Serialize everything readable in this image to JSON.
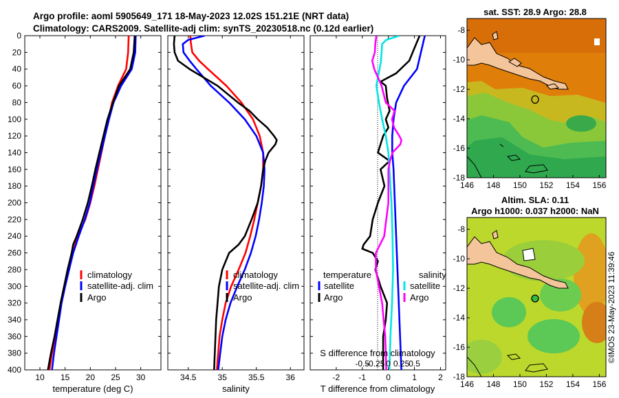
{
  "title": {
    "line1": "Argo profile: aoml 5905649_171 18-May-2023 12.02S 151.21E (NRT data)",
    "line2": "Climatology: CARS2009. Satellite-adj clim: synTS_20230518.nc (0.12d earlier)"
  },
  "depth_axis": {
    "ticks": [
      "0",
      "20",
      "40",
      "60",
      "80",
      "100",
      "120",
      "140",
      "160",
      "180",
      "200",
      "220",
      "240",
      "260",
      "280",
      "300",
      "320",
      "340",
      "360",
      "380",
      "400"
    ]
  },
  "map_titles": {
    "sst": "sat. SST: 28.9 Argo: 28.8",
    "sla_line1": "Altim. SLA: 0.11",
    "sla_line2": "Argo h1000: 0.037 h2000: NaN"
  },
  "map_axes": {
    "x_ticks": [
      "146",
      "148",
      "150",
      "152",
      "154",
      "156"
    ],
    "y_ticks": [
      "-8",
      "-10",
      "-12",
      "-14",
      "-16",
      "-18"
    ]
  },
  "stamp": "©IMOS 23-May-2023 11:39:46",
  "colors": {
    "climatology": "#ff0000",
    "satellite": "#0000ff",
    "argo": "#000000",
    "sat_salinity": "#00e5e5",
    "argo_salinity": "#ff00ff"
  },
  "chart_data": [
    {
      "type": "line",
      "name": "temperature-panel",
      "xlabel": "temperature (deg C)",
      "ylabel": "depth",
      "xlim": [
        7,
        34
      ],
      "ylim": [
        400,
        0
      ],
      "x_ticks": [
        "10",
        "15",
        "20",
        "25",
        "30"
      ],
      "legend": [
        "climatology",
        "satellite-adj. clim",
        "Argo"
      ],
      "series": [
        {
          "name": "climatology",
          "depth": [
            0,
            20,
            40,
            60,
            80,
            100,
            120,
            140,
            160,
            180,
            200,
            220,
            240,
            260,
            280,
            300,
            320,
            340,
            360,
            380,
            400
          ],
          "values": [
            27.6,
            27.5,
            27.1,
            25.5,
            24.3,
            23.6,
            22.9,
            22.2,
            21.5,
            20.8,
            20.0,
            19.0,
            17.5,
            16.5,
            15.7,
            14.9,
            14.2,
            13.6,
            13.0,
            12.4,
            11.9
          ]
        },
        {
          "name": "satellite",
          "depth": [
            0,
            20,
            40,
            60,
            80,
            100,
            120,
            140,
            160,
            180,
            200,
            220,
            240,
            260,
            280,
            300,
            320,
            340,
            360,
            380,
            400
          ],
          "values": [
            29.0,
            28.9,
            28.2,
            26.1,
            24.6,
            23.7,
            22.9,
            22.1,
            21.3,
            20.6,
            19.9,
            18.9,
            17.7,
            16.6,
            15.8,
            15.0,
            14.3,
            13.8,
            13.3,
            12.8,
            12.4
          ]
        },
        {
          "name": "Argo",
          "depth": [
            0,
            20,
            40,
            50,
            60,
            80,
            100,
            120,
            140,
            160,
            180,
            200,
            220,
            240,
            250,
            260,
            280,
            300,
            320,
            340,
            360,
            380,
            400
          ],
          "values": [
            28.8,
            28.6,
            27.9,
            26.8,
            25.7,
            24.5,
            23.4,
            22.6,
            21.8,
            21.0,
            20.3,
            19.5,
            18.5,
            17.3,
            16.6,
            16.3,
            15.5,
            14.8,
            14.1,
            13.5,
            12.9,
            12.2,
            11.6
          ]
        }
      ]
    },
    {
      "type": "line",
      "name": "salinity-panel",
      "xlabel": "salinity",
      "ylabel": "depth",
      "xlim": [
        34.2,
        36.2
      ],
      "ylim": [
        400,
        0
      ],
      "x_ticks": [
        "34.5",
        "35",
        "35.5",
        "36"
      ],
      "legend": [
        "climatology",
        "satellite-adj. clim",
        "Argo"
      ],
      "series": [
        {
          "name": "climatology",
          "depth": [
            0,
            10,
            20,
            30,
            40,
            60,
            80,
            100,
            120,
            140,
            160,
            180,
            200,
            220,
            240,
            260,
            280,
            300,
            320,
            340,
            360,
            380,
            400
          ],
          "values": [
            34.53,
            34.54,
            34.56,
            34.66,
            34.79,
            35.06,
            35.28,
            35.45,
            35.55,
            35.6,
            35.6,
            35.57,
            35.52,
            35.47,
            35.41,
            35.34,
            35.24,
            35.13,
            35.05,
            35.0,
            34.96,
            34.94,
            34.92
          ]
        },
        {
          "name": "satellite",
          "depth": [
            0,
            5,
            10,
            20,
            30,
            40,
            60,
            80,
            100,
            120,
            140,
            160,
            180,
            200,
            220,
            240,
            260,
            280,
            300,
            320,
            340,
            360,
            380,
            400
          ],
          "values": [
            34.74,
            34.5,
            34.42,
            34.43,
            34.52,
            34.62,
            34.83,
            35.1,
            35.33,
            35.5,
            35.6,
            35.62,
            35.61,
            35.58,
            35.54,
            35.49,
            35.42,
            35.33,
            35.22,
            35.12,
            35.05,
            35.0,
            34.97,
            34.94
          ]
        },
        {
          "name": "Argo",
          "depth": [
            0,
            10,
            20,
            30,
            40,
            60,
            80,
            90,
            100,
            110,
            120,
            125,
            130,
            140,
            150,
            160,
            180,
            200,
            220,
            240,
            250,
            260,
            280,
            300,
            320,
            340,
            360,
            380,
            400
          ],
          "values": [
            34.3,
            34.29,
            34.3,
            34.35,
            34.52,
            34.93,
            35.23,
            35.4,
            35.52,
            35.66,
            35.76,
            35.8,
            35.78,
            35.68,
            35.63,
            35.6,
            35.57,
            35.52,
            35.43,
            35.33,
            35.24,
            35.1,
            35.0,
            34.95,
            34.93,
            34.91,
            34.9,
            34.89,
            34.88
          ]
        }
      ]
    },
    {
      "type": "line",
      "name": "difference-panel",
      "xlabel": "T difference from climatology",
      "x2label": "S difference from climatology",
      "ylabel": "depth",
      "xlim": [
        -3,
        2.2
      ],
      "ylim": [
        400,
        0
      ],
      "x_ticks": [
        "-2",
        "-1",
        "0",
        "1",
        "2"
      ],
      "x2_ticks": [
        "-0.5",
        "-0.25",
        "0",
        "0.25",
        "0.5"
      ],
      "legend_left_title": "temperature",
      "legend_right_title": "salinity",
      "legend_left": [
        "satellite",
        "Argo"
      ],
      "legend_right": [
        "satellite",
        "Argo"
      ],
      "series": [
        {
          "name": "temperature satellite",
          "depth": [
            0,
            20,
            40,
            60,
            80,
            100,
            120,
            140,
            160,
            200,
            240,
            280,
            320,
            360,
            400
          ],
          "values": [
            1.4,
            1.25,
            1.1,
            0.6,
            0.3,
            0.2,
            0.15,
            0.15,
            0.2,
            0.25,
            0.3,
            0.35,
            0.4,
            0.45,
            0.5
          ]
        },
        {
          "name": "temperature Argo",
          "depth": [
            0,
            15,
            30,
            45,
            55,
            60,
            75,
            90,
            100,
            110,
            120,
            130,
            140,
            150,
            160,
            180,
            200,
            220,
            240,
            250,
            255,
            260,
            270,
            280,
            300,
            320,
            340,
            360,
            380,
            400
          ],
          "values": [
            1.2,
            1.0,
            0.8,
            0.3,
            -0.3,
            -0.1,
            -0.05,
            0.05,
            -0.1,
            0.0,
            -0.2,
            -0.3,
            -0.4,
            0.05,
            -0.3,
            -0.15,
            -0.4,
            -0.6,
            -0.7,
            -0.95,
            -1.0,
            -0.6,
            -0.4,
            -0.5,
            -0.3,
            -0.05,
            -0.1,
            -0.2,
            -0.2,
            -0.2
          ]
        },
        {
          "name": "salinity satellite",
          "depth": [
            0,
            5,
            10,
            20,
            30,
            40,
            60,
            80,
            100,
            120,
            140,
            160,
            180,
            200,
            240,
            280,
            320,
            360,
            400
          ],
          "values": [
            0.21,
            -0.04,
            -0.12,
            -0.13,
            -0.14,
            -0.17,
            -0.23,
            -0.18,
            -0.12,
            -0.05,
            0.0,
            0.02,
            0.04,
            0.06,
            0.08,
            0.09,
            0.07,
            0.04,
            0.02
          ]
        },
        {
          "name": "salinity Argo",
          "depth": [
            0,
            10,
            20,
            30,
            40,
            60,
            80,
            90,
            100,
            110,
            120,
            125,
            130,
            140,
            150,
            160,
            180,
            200,
            220,
            240,
            260,
            280,
            300,
            320,
            340,
            360,
            380,
            400
          ],
          "values": [
            -0.23,
            -0.25,
            -0.26,
            -0.31,
            -0.27,
            -0.13,
            -0.05,
            0.12,
            0.07,
            0.11,
            0.21,
            0.25,
            0.23,
            0.08,
            0.03,
            0.0,
            0.0,
            0.0,
            -0.04,
            -0.08,
            -0.24,
            -0.24,
            -0.18,
            -0.12,
            -0.09,
            -0.06,
            -0.05,
            -0.04
          ]
        }
      ]
    }
  ]
}
